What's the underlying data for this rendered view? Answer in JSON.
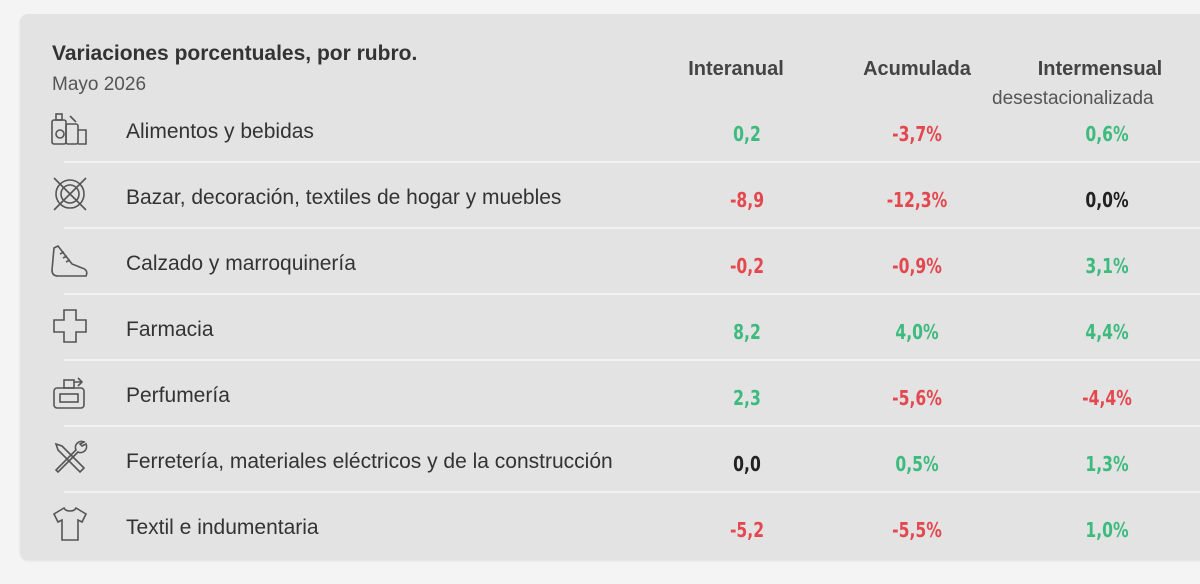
{
  "header": {
    "title": "Variaciones porcentuales, por rubro.",
    "subtitle": "Mayo 2026",
    "col_interanual": "Interanual",
    "col_acumulada": "Acumulada",
    "col_intermensual": "Intermensual",
    "col_intermensual_sub": "desestacionalizada"
  },
  "colors": {
    "positive": "#3dbb7e",
    "negative": "#e4484f",
    "neutral": "#222222"
  },
  "rows": [
    {
      "icon": "groceries-icon",
      "label": "Alimentos y bebidas",
      "interanual": "0,2",
      "acumulada": "-3,7%",
      "intermensual": "0,6%"
    },
    {
      "icon": "housewares-icon",
      "label": "Bazar, decoración, textiles de hogar y muebles",
      "interanual": "-8,9",
      "acumulada": "-12,3%",
      "intermensual": "0,0%"
    },
    {
      "icon": "shoe-icon",
      "label": "Calzado y marroquinería",
      "interanual": "-0,2",
      "acumulada": "-0,9%",
      "intermensual": "3,1%"
    },
    {
      "icon": "pharmacy-cross-icon",
      "label": "Farmacia",
      "interanual": "8,2",
      "acumulada": "4,0%",
      "intermensual": "4,4%"
    },
    {
      "icon": "perfume-icon",
      "label": "Perfumería",
      "interanual": "2,3",
      "acumulada": "-5,6%",
      "intermensual": "-4,4%"
    },
    {
      "icon": "tools-icon",
      "label": "Ferretería, materiales eléctricos y de la construcción",
      "interanual": "0,0",
      "acumulada": "0,5%",
      "intermensual": "1,3%"
    },
    {
      "icon": "tshirt-icon",
      "label": "Textil e indumentaria",
      "interanual": "-5,2",
      "acumulada": "-5,5%",
      "intermensual": "1,0%"
    }
  ]
}
